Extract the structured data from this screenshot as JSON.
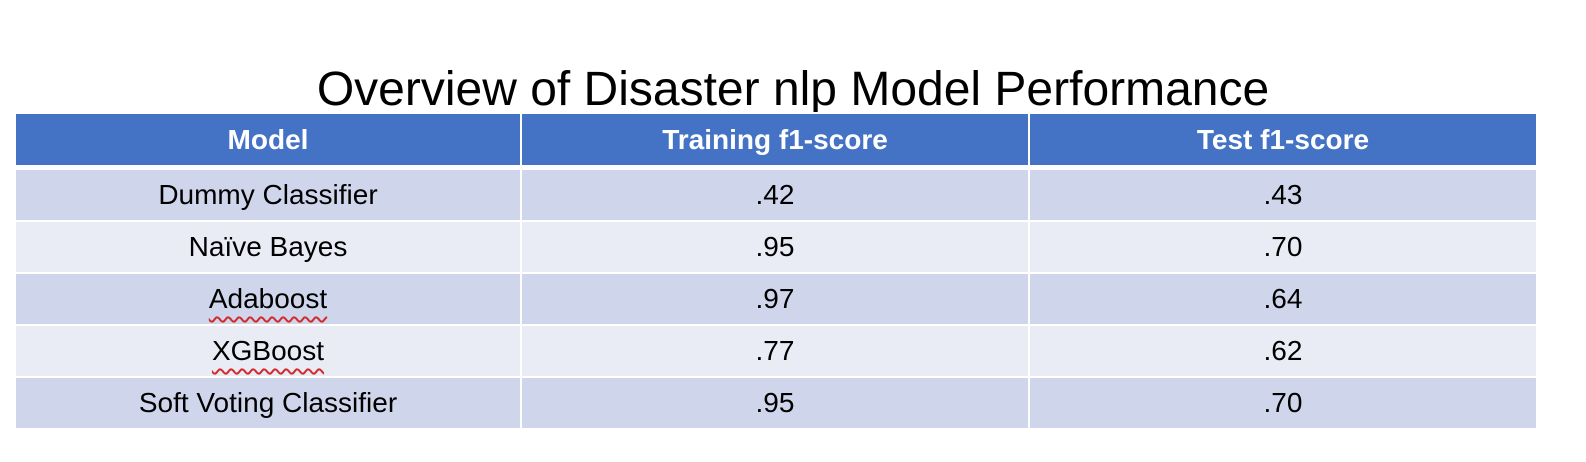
{
  "title": {
    "before": "Overview of Disaster ",
    "flagged": "nlp",
    "after": " Model Performance"
  },
  "table": {
    "headers": [
      "Model",
      "Training f1-score",
      "Test f1-score"
    ],
    "rows": [
      {
        "model": "Dummy Classifier",
        "train": ".42",
        "test": ".43",
        "spellflag": false
      },
      {
        "model": "Naïve Bayes",
        "train": ".95",
        "test": ".70",
        "spellflag": false
      },
      {
        "model": "Adaboost",
        "train": ".97",
        "test": ".64",
        "spellflag": true
      },
      {
        "model": "XGBoost",
        "train": ".77",
        "test": ".62",
        "spellflag": true
      },
      {
        "model": "Soft Voting Classifier",
        "train": ".95",
        "test": ".70",
        "spellflag": false
      }
    ]
  },
  "colors": {
    "header_bg": "#4472c4",
    "row_odd_bg": "#cfd5ea",
    "row_even_bg": "#e9ebf5",
    "spellcheck_underline": "#d22b2b"
  }
}
